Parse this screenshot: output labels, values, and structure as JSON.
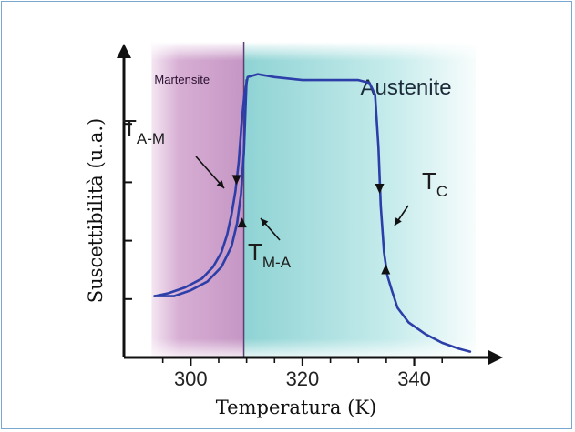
{
  "chart_data": {
    "type": "line",
    "xlabel": "Temperatura (K)",
    "ylabel": "Suscettibilità (u.a.)",
    "xlim": [
      290,
      351
    ],
    "ylim": [
      0,
      1
    ],
    "x_ticks": [
      300,
      320,
      340
    ],
    "grid": false,
    "regions": [
      {
        "label": "Martensite",
        "x_start": 293,
        "x_end": 309.5,
        "color": "#c99ec8"
      },
      {
        "label": "Austenite",
        "x_start": 309.5,
        "x_end": 351,
        "color": "#9fdcdc"
      }
    ],
    "annotations": [
      {
        "main": "T",
        "sub": "A-M",
        "x": 307.8,
        "y": 0.42
      },
      {
        "main": "T",
        "sub": "M-A",
        "x": 309.3,
        "y": 0.32
      },
      {
        "main": "T",
        "sub": "C",
        "x": 334.2,
        "y": 0.34
      }
    ],
    "series": [
      {
        "line_color": "#2c3ea8",
        "x": [
          293.5,
          296,
          299,
          302,
          304,
          305.5,
          306.5,
          307.3,
          308,
          308.6,
          309.1,
          309.6,
          310.2,
          312,
          315,
          320,
          325,
          330,
          332,
          333,
          333.6,
          334,
          334.6,
          335.2,
          336,
          337,
          339,
          342,
          345,
          348,
          350
        ],
        "y": [
          0.21,
          0.22,
          0.24,
          0.27,
          0.31,
          0.36,
          0.42,
          0.49,
          0.57,
          0.67,
          0.8,
          0.9,
          0.96,
          0.97,
          0.96,
          0.95,
          0.95,
          0.95,
          0.94,
          0.9,
          0.72,
          0.52,
          0.36,
          0.28,
          0.23,
          0.17,
          0.12,
          0.08,
          0.05,
          0.03,
          0.02
        ]
      },
      {
        "line_color": "#2c3ea8",
        "x": [
          293.5,
          297,
          300,
          303,
          305.5,
          307.3,
          308.3,
          309,
          309.5,
          310
        ],
        "y": [
          0.21,
          0.21,
          0.23,
          0.26,
          0.31,
          0.38,
          0.46,
          0.56,
          0.7,
          0.95
        ]
      }
    ]
  }
}
